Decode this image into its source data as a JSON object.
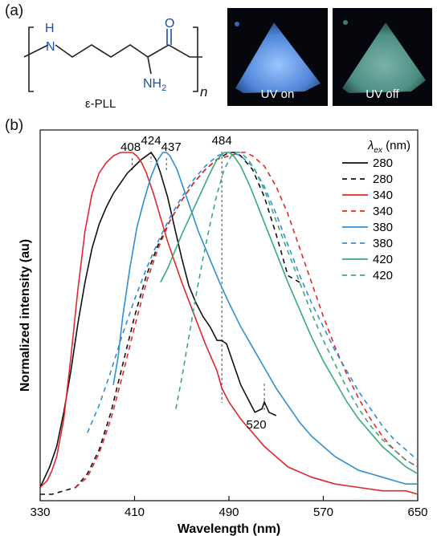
{
  "panel_a": {
    "label": "(a)",
    "molecule": {
      "atom_H": "H",
      "atom_N": "N",
      "atom_O": "O",
      "amine": "NH",
      "amine_sub": "2",
      "repeat": "n",
      "name": "ε-PLL"
    },
    "photos": [
      {
        "caption": "UV on",
        "glow_color": "#4f86d8"
      },
      {
        "caption": "UV off",
        "glow_color": "#5aa79a"
      }
    ],
    "colors": {
      "heteroatom": "#1f4fa8",
      "bond": "#222222"
    }
  },
  "panel_b": {
    "label": "(b)"
  },
  "chart_data": {
    "type": "line",
    "xlabel": "Wavelength (nm)",
    "ylabel": "Normalized intensity (au)",
    "xlim": [
      330,
      650
    ],
    "ylim": [
      0,
      1
    ],
    "xticks": [
      330,
      410,
      490,
      570,
      650
    ],
    "legend_title": "λex (nm)",
    "legend_title_base": "λ",
    "legend_title_sub": "ex",
    "legend_title_unit": " (nm)",
    "legend_position": "top-right",
    "annotations": [
      {
        "text": "408",
        "x": 408
      },
      {
        "text": "424",
        "x": 424
      },
      {
        "text": "437",
        "x": 437
      },
      {
        "text": "484",
        "x": 484
      },
      {
        "text": "520",
        "x": 520
      }
    ],
    "series": [
      {
        "name": "280",
        "color": "#111111",
        "dash": false,
        "x": [
          330,
          334,
          338,
          344,
          350,
          356,
          362,
          368,
          374,
          380,
          386,
          392,
          398,
          404,
          410,
          416,
          420,
          424,
          428,
          432,
          438,
          444,
          450,
          456,
          462,
          468,
          474,
          480,
          484,
          488,
          492,
          496,
          500,
          506,
          512,
          518,
          520,
          524,
          530
        ],
        "y": [
          0.02,
          0.05,
          0.08,
          0.14,
          0.24,
          0.36,
          0.5,
          0.62,
          0.72,
          0.79,
          0.84,
          0.88,
          0.91,
          0.94,
          0.96,
          0.98,
          0.99,
          1.0,
          0.98,
          0.94,
          0.87,
          0.78,
          0.69,
          0.61,
          0.56,
          0.52,
          0.49,
          0.45,
          0.45,
          0.44,
          0.4,
          0.36,
          0.32,
          0.28,
          0.24,
          0.25,
          0.27,
          0.24,
          0.23
        ]
      },
      {
        "name": "280",
        "color": "#111111",
        "dash": true,
        "x": [
          330,
          340,
          350,
          360,
          370,
          380,
          390,
          400,
          410,
          420,
          430,
          440,
          450,
          460,
          470,
          480,
          490,
          496,
          500,
          510,
          520,
          530,
          540,
          550
        ],
        "y": [
          0.0,
          0.0,
          0.01,
          0.02,
          0.06,
          0.13,
          0.24,
          0.38,
          0.52,
          0.64,
          0.73,
          0.8,
          0.86,
          0.91,
          0.95,
          0.98,
          1.0,
          1.0,
          0.99,
          0.95,
          0.87,
          0.76,
          0.64,
          0.62
        ]
      },
      {
        "name": "340",
        "color": "#e0282c",
        "dash": false,
        "x": [
          330,
          336,
          340,
          344,
          350,
          356,
          362,
          368,
          374,
          380,
          386,
          392,
          398,
          404,
          408,
          412,
          416,
          420,
          426,
          432,
          438,
          444,
          450,
          460,
          470,
          480,
          484,
          490,
          500,
          510,
          520,
          530,
          540,
          560,
          580,
          600,
          620,
          640,
          650
        ],
        "y": [
          0.02,
          0.04,
          0.07,
          0.11,
          0.22,
          0.4,
          0.6,
          0.77,
          0.88,
          0.94,
          0.97,
          0.99,
          1.0,
          1.0,
          1.0,
          0.99,
          0.97,
          0.94,
          0.88,
          0.81,
          0.74,
          0.68,
          0.62,
          0.53,
          0.44,
          0.36,
          0.31,
          0.27,
          0.22,
          0.18,
          0.14,
          0.11,
          0.08,
          0.05,
          0.03,
          0.02,
          0.01,
          0.01,
          0.0
        ]
      },
      {
        "name": "340",
        "color": "#e0282c",
        "dash": true,
        "x": [
          360,
          370,
          380,
          390,
          400,
          410,
          420,
          430,
          440,
          450,
          460,
          470,
          480,
          490,
          500,
          504,
          510,
          520,
          530,
          540,
          550,
          560,
          570,
          580,
          590,
          600,
          610,
          620,
          630,
          640,
          650
        ],
        "y": [
          0.02,
          0.05,
          0.12,
          0.22,
          0.35,
          0.49,
          0.62,
          0.72,
          0.8,
          0.86,
          0.91,
          0.95,
          0.98,
          0.99,
          1.0,
          1.0,
          0.99,
          0.96,
          0.9,
          0.82,
          0.72,
          0.62,
          0.52,
          0.43,
          0.35,
          0.28,
          0.22,
          0.17,
          0.13,
          0.1,
          0.08
        ]
      },
      {
        "name": "380",
        "color": "#2f8fd4",
        "dash": false,
        "x": [
          392,
          396,
          400,
          406,
          412,
          418,
          424,
          430,
          434,
          437,
          440,
          446,
          452,
          458,
          464,
          470,
          476,
          482,
          490,
          500,
          510,
          520,
          530,
          540,
          550,
          560,
          570,
          580,
          590,
          600,
          610,
          620,
          630,
          640,
          650
        ],
        "y": [
          0.32,
          0.4,
          0.52,
          0.66,
          0.78,
          0.86,
          0.93,
          0.98,
          1.0,
          1.0,
          0.99,
          0.95,
          0.89,
          0.83,
          0.77,
          0.72,
          0.67,
          0.62,
          0.56,
          0.49,
          0.43,
          0.37,
          0.31,
          0.26,
          0.21,
          0.17,
          0.14,
          0.11,
          0.09,
          0.07,
          0.06,
          0.05,
          0.04,
          0.03,
          0.03
        ]
      },
      {
        "name": "380",
        "color": "#2f8fd4",
        "dash": true,
        "x": [
          370,
          380,
          390,
          400,
          410,
          420,
          430,
          440,
          450,
          460,
          470,
          480,
          488,
          492,
          500,
          510,
          520,
          530,
          540,
          550,
          560,
          570,
          580,
          590,
          600,
          610,
          620,
          630,
          640,
          650
        ],
        "y": [
          0.18,
          0.26,
          0.36,
          0.47,
          0.57,
          0.66,
          0.74,
          0.81,
          0.87,
          0.92,
          0.96,
          0.99,
          1.0,
          1.0,
          0.99,
          0.96,
          0.9,
          0.82,
          0.73,
          0.64,
          0.56,
          0.49,
          0.42,
          0.36,
          0.3,
          0.25,
          0.2,
          0.16,
          0.13,
          0.1
        ]
      },
      {
        "name": "420",
        "color": "#3aaa7a",
        "dash": false,
        "x": [
          432,
          438,
          444,
          450,
          458,
          466,
          474,
          480,
          486,
          490,
          494,
          500,
          508,
          516,
          524,
          532,
          540,
          550,
          560,
          570,
          580,
          590,
          600,
          610,
          620,
          630,
          640,
          650
        ],
        "y": [
          0.62,
          0.66,
          0.71,
          0.76,
          0.82,
          0.88,
          0.94,
          0.98,
          1.0,
          1.0,
          0.99,
          0.96,
          0.9,
          0.83,
          0.76,
          0.69,
          0.62,
          0.54,
          0.46,
          0.39,
          0.33,
          0.27,
          0.22,
          0.18,
          0.14,
          0.11,
          0.08,
          0.06
        ]
      },
      {
        "name": "420",
        "color": "#3aaa7a",
        "dash": true,
        "x": [
          445,
          450,
          456,
          462,
          468,
          474,
          480,
          486,
          492,
          496,
          500,
          506,
          512,
          520,
          530,
          540,
          550,
          560,
          570,
          580,
          590,
          600,
          610,
          620,
          630,
          640,
          650
        ],
        "y": [
          0.25,
          0.34,
          0.46,
          0.58,
          0.69,
          0.79,
          0.88,
          0.95,
          0.99,
          1.0,
          1.0,
          0.98,
          0.95,
          0.89,
          0.8,
          0.71,
          0.62,
          0.53,
          0.45,
          0.38,
          0.31,
          0.25,
          0.2,
          0.16,
          0.13,
          0.1,
          0.08
        ]
      }
    ]
  }
}
